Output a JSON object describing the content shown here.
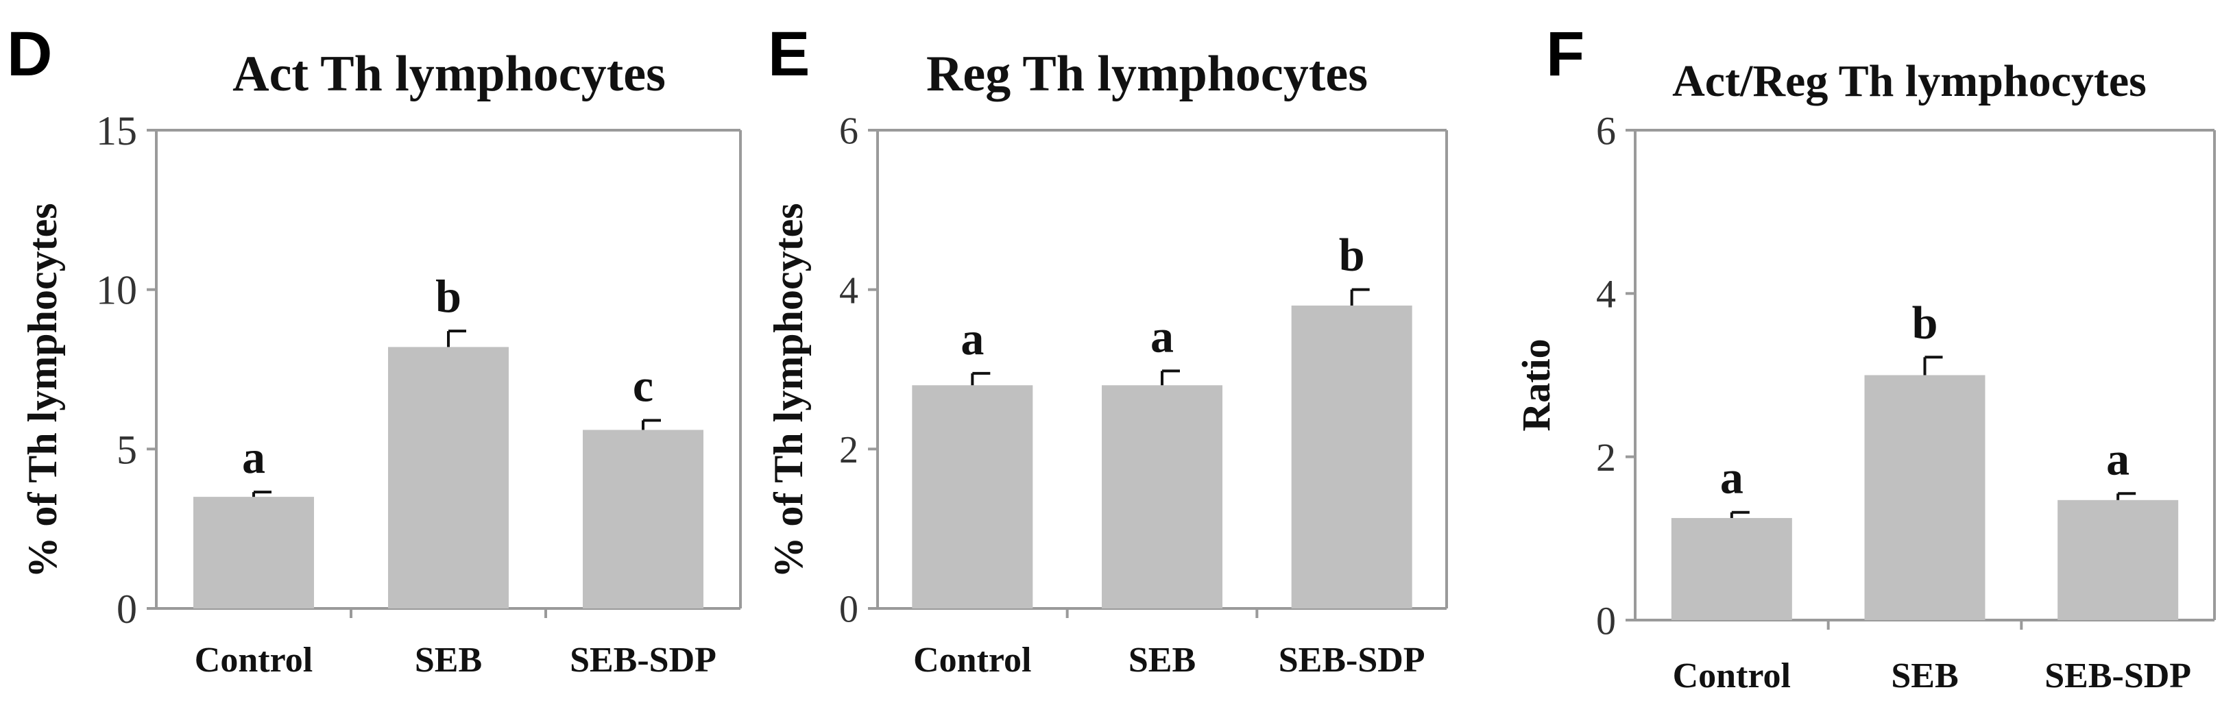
{
  "chart_data": [
    {
      "type": "bar",
      "panel": "D",
      "title": "Act Th lymphocytes",
      "ylabel": "% of Th lymphocytes",
      "xlabel": "",
      "categories": [
        "Control",
        "SEB",
        "SEB-SDP"
      ],
      "values": [
        3.5,
        8.2,
        5.6
      ],
      "errors": [
        0.15,
        0.5,
        0.3
      ],
      "significance": [
        "a",
        "b",
        "c"
      ],
      "ylim": [
        0,
        15
      ],
      "yticks": [
        "0",
        "5",
        "10",
        "15"
      ],
      "bar_color": "#c0c0c0",
      "grid": false
    },
    {
      "type": "bar",
      "panel": "E",
      "title": "Reg Th lymphocytes",
      "ylabel": "% of Th lymphocytes",
      "xlabel": "",
      "categories": [
        "Control",
        "SEB",
        "SEB-SDP"
      ],
      "values": [
        2.8,
        2.8,
        3.8
      ],
      "errors": [
        0.15,
        0.18,
        0.2
      ],
      "significance": [
        "a",
        "a",
        "b"
      ],
      "ylim": [
        0,
        6
      ],
      "yticks": [
        "0",
        "2",
        "4",
        "6"
      ],
      "bar_color": "#c0c0c0",
      "grid": false
    },
    {
      "type": "bar",
      "panel": "F",
      "title": "Act/Reg Th lymphocytes",
      "ylabel": "Ratio",
      "xlabel": "",
      "categories": [
        "Control",
        "SEB",
        "SEB-SDP"
      ],
      "values": [
        1.25,
        3.0,
        1.47
      ],
      "errors": [
        0.07,
        0.22,
        0.08
      ],
      "significance": [
        "a",
        "b",
        "a"
      ],
      "ylim": [
        0,
        6
      ],
      "yticks": [
        "0",
        "2",
        "4",
        "6"
      ],
      "bar_color": "#c0c0c0",
      "grid": false
    }
  ]
}
